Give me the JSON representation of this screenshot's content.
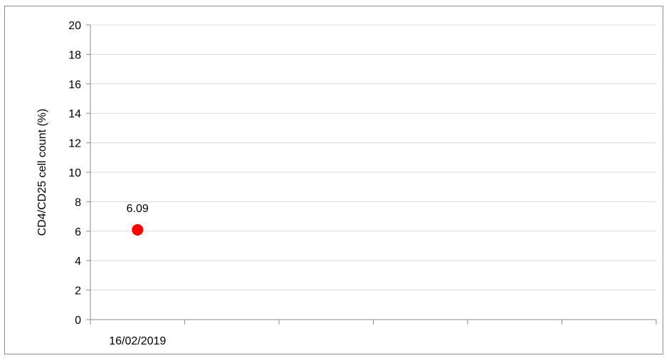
{
  "chart_data": {
    "type": "scatter",
    "title": "",
    "xlabel": "",
    "ylabel": "CD4/CD25 cell count (%)",
    "ylim": [
      0,
      20
    ],
    "y_ticks": [
      "0",
      "2",
      "4",
      "6",
      "8",
      "10",
      "12",
      "14",
      "16",
      "18",
      "20"
    ],
    "x_categories": [
      "16/02/2019",
      "",
      "",
      "",
      "",
      ""
    ],
    "grid": true,
    "legend": "none",
    "marker_color": "#ff0000",
    "points": [
      {
        "x": "16/02/2019",
        "y": 6.09,
        "label": "6.09"
      }
    ]
  }
}
